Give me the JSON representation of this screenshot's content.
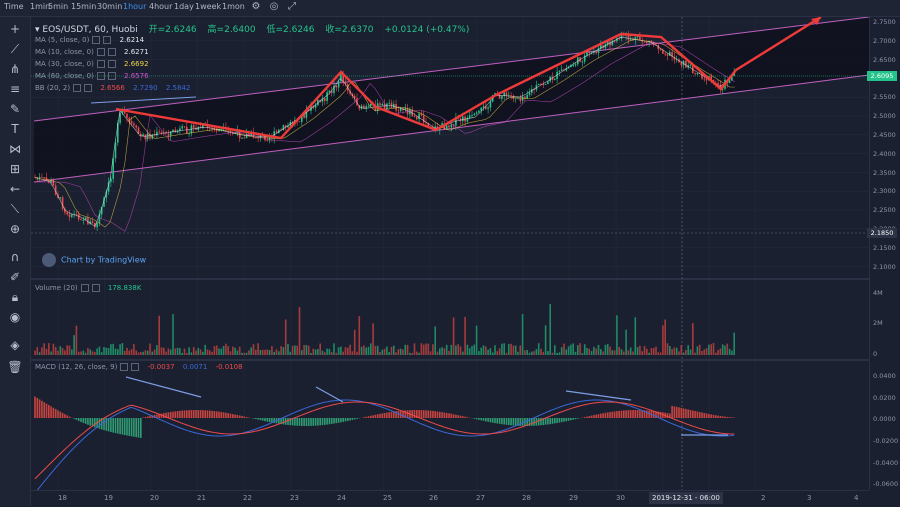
{
  "toolbar": {
    "intervals": [
      "Time",
      "1min",
      "5min",
      "15min",
      "30min",
      "1hour",
      "4hour",
      "1day",
      "1week",
      "1mon"
    ],
    "active_interval": "1hour"
  },
  "header": {
    "symbol": "EOS/USDT, 60, Huobi",
    "open_label": "开=2.6246",
    "high_label": "高=2.6400",
    "low_label": "低=2.6246",
    "close_label": "收=2.6370",
    "change_label": "+0.0124 (+0.47%)"
  },
  "indicators": {
    "ma5": {
      "label": "MA (5, close, 0)",
      "value": "2.6214",
      "color": "#e3e7ee"
    },
    "ma10": {
      "label": "MA (10, close, 0)",
      "value": "2.6271",
      "color": "#e3e7ee"
    },
    "ma30": {
      "label": "MA (30, close, 0)",
      "value": "2.6692",
      "color": "#f1d34a"
    },
    "ma60": {
      "label": "MA (60, close, 0)",
      "value": "2.6576",
      "color": "#d04dd0"
    },
    "bb": {
      "label": "BB (20, 2)",
      "v1": "2.6566",
      "v2": "2.7290",
      "v3": "2.5842",
      "color_v1": "#ef4a4a",
      "color_v2": "#3a68d8",
      "color_v3": "#3a68d8"
    }
  },
  "price_axis": {
    "ticks": [
      "2.7500",
      "2.7000",
      "2.6500",
      "2.6000",
      "2.5500",
      "2.5000",
      "2.4500",
      "2.4000",
      "2.3500",
      "2.3000",
      "2.2500",
      "2.2000",
      "2.1500",
      "2.1000"
    ],
    "current_price": "2.6095",
    "current_color": "#25c38c",
    "crosshair_price": "2.1850"
  },
  "volume": {
    "label": "Volume (20)",
    "value": "178.838K",
    "ticks": [
      "4M",
      "2M",
      "0"
    ]
  },
  "macd": {
    "label": "MACD (12, 26, close, 9)",
    "v1": "-0.0037",
    "v2": "0.0071",
    "v3": "-0.0108",
    "ticks": [
      "0.0400",
      "0.0200",
      "0.0000",
      "-0.0200",
      "-0.0400",
      "-0.0600"
    ]
  },
  "time_axis": {
    "ticks": [
      "18",
      "19",
      "20",
      "21",
      "22",
      "23",
      "24",
      "25",
      "26",
      "27",
      "28",
      "29",
      "30",
      "2",
      "3",
      "4"
    ],
    "crosshair_time": "2019-12-31 - 06:00"
  },
  "watermark": "Chart by TradingView",
  "icons": [
    "crosshair-icon",
    "trendline-icon",
    "pitchfork-icon",
    "fib-icon",
    "brush-icon",
    "text-icon",
    "pattern-icon",
    "measure-icon",
    "arrow-left-icon",
    "ruler-icon",
    "zoom-icon",
    "magnet-icon",
    "lock-draw-icon",
    "lock-icon",
    "eye-icon",
    "layers-icon",
    "trash-icon"
  ]
}
